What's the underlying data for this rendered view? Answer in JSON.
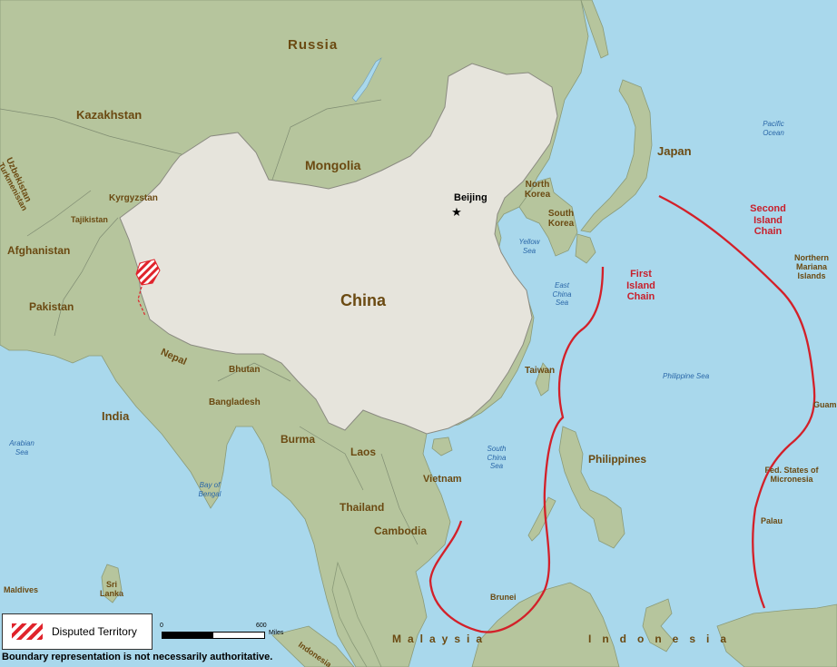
{
  "map": {
    "countries": {
      "russia": "Russia",
      "kazakhstan": "Kazakhstan",
      "mongolia": "Mongolia",
      "china": "China",
      "uzbekistan": "Uzbekistan",
      "turkmenistan": "Turkmenistan",
      "kyrgyzstan": "Kyrgyzstan",
      "tajikistan": "Tajikistan",
      "afghanistan": "Afghanistan",
      "pakistan": "Pakistan",
      "india": "India",
      "nepal": "Nepal",
      "bhutan": "Bhutan",
      "bangladesh": "Bangladesh",
      "burma": "Burma",
      "laos": "Laos",
      "thailand": "Thailand",
      "cambodia": "Cambodia",
      "vietnam": "Vietnam",
      "north_korea": "North Korea",
      "south_korea": "South Korea",
      "japan": "Japan",
      "taiwan": "Taiwan",
      "philippines": "Philippines",
      "brunei": "Brunei",
      "malaysia": "Malaysia",
      "indonesia_main": "Indonesia",
      "indonesia_small": "Indonesia",
      "sri_lanka": "Sri Lanka",
      "maldives": "Maldives",
      "guam": "Guam",
      "palau": "Palau",
      "micronesia": "Fed. States of Micronesia",
      "mariana": "Northern Mariana Islands"
    },
    "capital": {
      "name": "Beijing",
      "symbol": "★"
    },
    "seas": {
      "pacific": "Pacific Ocean",
      "yellow": "Yellow Sea",
      "east_china": "East China Sea",
      "philippine": "Philippine Sea",
      "south_china": "South China Sea",
      "arabian": "Arabian Sea",
      "bengal": "Bay of Bengal"
    },
    "chains": {
      "first": "First Island Chain",
      "second": "Second Island Chain",
      "color": "#c8202c"
    },
    "colors": {
      "water": "#a9d8ec",
      "land": "#b6c59d",
      "china": "#e6e4dc",
      "label": "#6b4a12",
      "sea_label": "#2a67a8",
      "disputed": "#e0242c"
    }
  },
  "legend": {
    "disputed_label": "Disputed Territory"
  },
  "scale": {
    "start": "0",
    "end": "600",
    "unit": "Miles"
  },
  "disclaimer": "Boundary representation is not necessarily authoritative."
}
